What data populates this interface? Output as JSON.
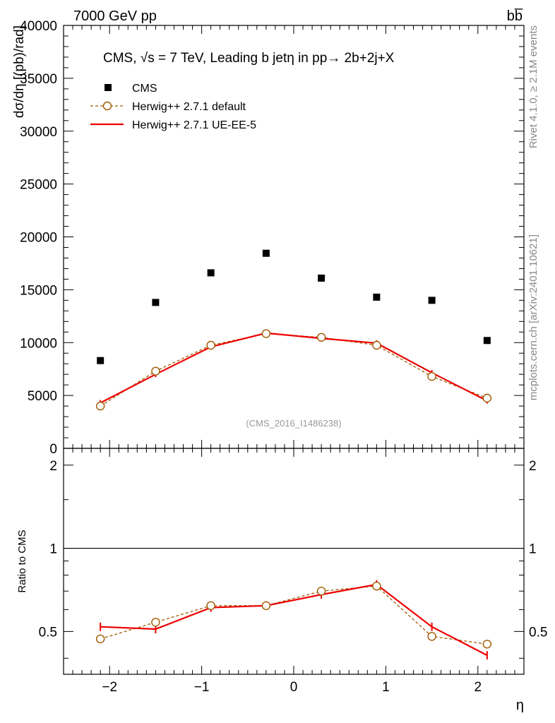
{
  "header": {
    "left": "7000 GeV pp",
    "right": "bb̅"
  },
  "side": {
    "rivet": "Rivet 4.1.0, ≥ 2.1M events",
    "source": "mcplots.cern.ch [arXiv:2401.10621]"
  },
  "watermark": "(CMS_2016_I1486238)",
  "chart_data": [
    {
      "type": "scatter",
      "title": "CMS, √s = 7 TeV, Leading b jetη in pp→  2b+2j+X",
      "xlabel": "η",
      "ylabel": "dσ/dη [(pb)/rad]",
      "xlim": [
        -2.5,
        2.5
      ],
      "ylim": [
        0,
        40000
      ],
      "yticks": [
        0,
        5000,
        10000,
        15000,
        20000,
        25000,
        30000,
        35000,
        40000
      ],
      "ytick_labels": [
        "0",
        "5000",
        "10000",
        "15000",
        "20000",
        "25000",
        "30000",
        "35000",
        "40000"
      ],
      "legend_position": "top-left",
      "x": [
        -2.1,
        -1.5,
        -0.9,
        -0.3,
        0.3,
        0.9,
        1.5,
        2.1
      ],
      "series": [
        {
          "name": "CMS",
          "color": "#000000",
          "marker": "square",
          "values": [
            8300,
            13800,
            16600,
            18450,
            16100,
            14300,
            14000,
            10200
          ]
        },
        {
          "name": "Herwig++ 2.7.1 default",
          "color": "#a05a00",
          "marker": "open-circle",
          "line": "dashed",
          "values": [
            4000,
            7300,
            9750,
            10850,
            10500,
            9750,
            6800,
            4750
          ]
        },
        {
          "name": "Herwig++ 2.7.1 UE-EE-5",
          "color": "#ee0000",
          "marker": "none",
          "line": "solid",
          "values": [
            4300,
            7000,
            9600,
            10900,
            10400,
            9950,
            7150,
            4500
          ]
        }
      ]
    },
    {
      "type": "line",
      "xlabel": "η",
      "ylabel": "Ratio to CMS",
      "xlim": [
        -2.5,
        2.5
      ],
      "ylim": [
        0.35,
        2.3
      ],
      "xticks": [
        -2,
        -1,
        0,
        1,
        2
      ],
      "xtick_labels": [
        "−2",
        "−1",
        "0",
        "1",
        "2"
      ],
      "yticks": [
        0.5,
        1,
        2
      ],
      "ytick_labels": [
        "0.5",
        "1",
        "2"
      ],
      "x": [
        -2.1,
        -1.5,
        -0.9,
        -0.3,
        0.3,
        0.9,
        1.5,
        2.1
      ],
      "series": [
        {
          "name": "Herwig++ 2.7.1 default",
          "color": "#a05a00",
          "values": [
            0.47,
            0.54,
            0.62,
            0.62,
            0.7,
            0.73,
            0.48,
            0.45
          ]
        },
        {
          "name": "Herwig++ 2.7.1 UE-EE-5",
          "color": "#ee0000",
          "values": [
            0.52,
            0.51,
            0.61,
            0.62,
            0.68,
            0.74,
            0.52,
            0.41
          ]
        }
      ]
    }
  ]
}
